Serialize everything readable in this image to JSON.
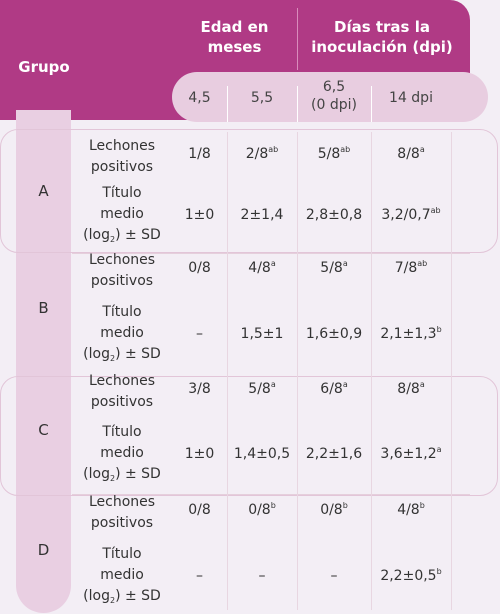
{
  "header": {
    "grupo": "Grupo",
    "edad_line1": "Edad en",
    "edad_line2": "meses",
    "dias_line1": "Días tras la",
    "dias_line2": "inoculación (dpi)",
    "cols": [
      "4,5",
      "5,5",
      "6,5",
      "(0 dpi)",
      "14 dpi"
    ]
  },
  "labels": {
    "positivos_1": "Lechones",
    "positivos_2": "positivos",
    "titulo_1": "Título",
    "titulo_2": "medio",
    "titulo_3a": "(log",
    "titulo_3sub": "2",
    "titulo_3b": ") ± SD"
  },
  "groups": [
    {
      "name": "A",
      "positivos": [
        {
          "v": "1/8",
          "s": ""
        },
        {
          "v": "2/8",
          "s": "ab"
        },
        {
          "v": "5/8",
          "s": "ab"
        },
        {
          "v": "8/8",
          "s": "a"
        }
      ],
      "titulo": [
        {
          "v": "1±0",
          "s": ""
        },
        {
          "v": "2±1,4",
          "s": ""
        },
        {
          "v": "2,8±0,8",
          "s": ""
        },
        {
          "v": "3,2/0,7",
          "s": "ab"
        }
      ]
    },
    {
      "name": "B",
      "positivos": [
        {
          "v": "0/8",
          "s": ""
        },
        {
          "v": "4/8",
          "s": "a"
        },
        {
          "v": "5/8",
          "s": "a"
        },
        {
          "v": "7/8",
          "s": "ab"
        }
      ],
      "titulo": [
        {
          "v": "–",
          "s": ""
        },
        {
          "v": "1,5±1",
          "s": ""
        },
        {
          "v": "1,6±0,9",
          "s": ""
        },
        {
          "v": "2,1±1,3",
          "s": "b"
        }
      ]
    },
    {
      "name": "C",
      "positivos": [
        {
          "v": "3/8",
          "s": ""
        },
        {
          "v": "5/8",
          "s": "a"
        },
        {
          "v": "6/8",
          "s": "a"
        },
        {
          "v": "8/8",
          "s": "a"
        }
      ],
      "titulo": [
        {
          "v": "1±0",
          "s": ""
        },
        {
          "v": "1,4±0,5",
          "s": ""
        },
        {
          "v": "2,2±1,6",
          "s": ""
        },
        {
          "v": "3,6±1,2",
          "s": "a"
        }
      ]
    },
    {
      "name": "D",
      "positivos": [
        {
          "v": "0/8",
          "s": ""
        },
        {
          "v": "0/8",
          "s": "b"
        },
        {
          "v": "0/8",
          "s": "b"
        },
        {
          "v": "4/8",
          "s": "b"
        }
      ],
      "titulo": [
        {
          "v": "–",
          "s": ""
        },
        {
          "v": "–",
          "s": ""
        },
        {
          "v": "–",
          "s": ""
        },
        {
          "v": "2,2±0,5",
          "s": "b"
        }
      ]
    }
  ],
  "colors": {
    "header": "#b03a85",
    "subheader": "#e8cde0",
    "group_strip": "#e9cfe2",
    "background": "#f3eef5"
  }
}
